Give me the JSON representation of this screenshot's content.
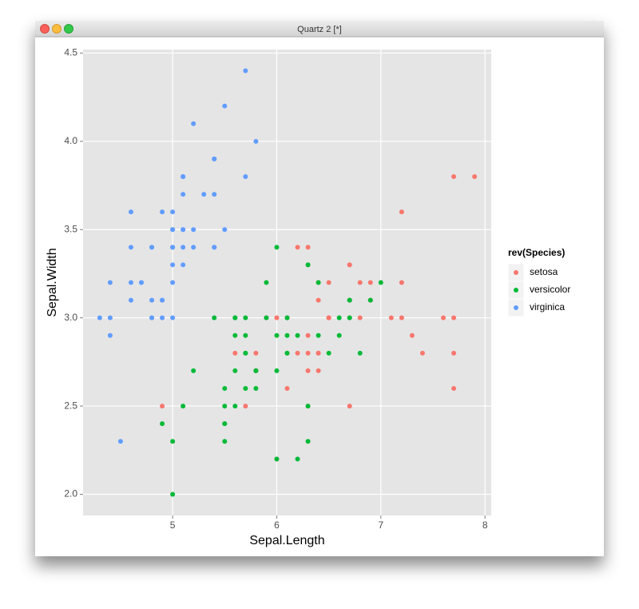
{
  "window_title": "Quartz 2 [*]",
  "chart_data": {
    "type": "scatter",
    "x_label": "Sepal.Length",
    "y_label": "Sepal.Width",
    "legend_title": "rev(Species)",
    "legend_position": "right",
    "grid": true,
    "panel_color": "#e5e5e5",
    "xlim": [
      4.14,
      8.06
    ],
    "ylim": [
      1.88,
      4.52
    ],
    "xticks": [
      5,
      6,
      7,
      8
    ],
    "yticks": [
      {
        "value": 2,
        "label": "2.0"
      },
      2.5,
      {
        "value": 3,
        "label": "3.0"
      },
      3.5,
      {
        "value": 4,
        "label": "4.0"
      },
      4.5
    ],
    "series": [
      {
        "name": "setosa",
        "color": "#f8766d",
        "x": [
          6.3,
          5.8,
          7.1,
          6.3,
          6.5,
          7.6,
          4.9,
          7.3,
          6.7,
          7.2,
          6.5,
          6.4,
          6.8,
          5.7,
          5.8,
          6.4,
          6.5,
          7.7,
          7.7,
          6.0,
          6.9,
          5.6,
          7.7,
          6.3,
          6.7,
          7.2,
          6.2,
          6.1,
          6.4,
          7.2,
          7.4,
          7.9,
          6.4,
          6.3,
          6.1,
          7.7,
          6.3,
          6.4,
          6.0,
          6.9,
          6.7,
          6.9,
          5.8,
          6.8,
          6.7,
          6.7,
          6.3,
          6.5,
          6.2,
          5.9
        ],
        "y": [
          3.3,
          2.7,
          3.0,
          2.9,
          3.0,
          3.0,
          2.5,
          2.9,
          2.5,
          3.6,
          3.2,
          2.7,
          3.0,
          2.5,
          2.8,
          3.2,
          3.0,
          3.8,
          2.6,
          2.2,
          3.2,
          2.8,
          2.8,
          2.7,
          3.3,
          3.2,
          2.8,
          3.0,
          2.8,
          3.0,
          2.8,
          3.8,
          2.8,
          2.8,
          2.6,
          3.0,
          3.4,
          3.1,
          3.0,
          3.1,
          3.1,
          3.1,
          2.7,
          3.2,
          3.3,
          3.0,
          2.5,
          3.0,
          3.4,
          3.0
        ]
      },
      {
        "name": "versicolor",
        "color": "#00ba38",
        "x": [
          7.0,
          6.4,
          6.9,
          5.5,
          6.5,
          5.7,
          6.3,
          4.9,
          6.6,
          5.2,
          5.0,
          5.9,
          6.0,
          6.1,
          5.6,
          6.7,
          5.6,
          5.8,
          6.2,
          5.6,
          5.9,
          6.1,
          6.3,
          6.1,
          6.4,
          6.6,
          6.8,
          6.7,
          6.0,
          5.7,
          5.5,
          5.5,
          5.8,
          6.0,
          5.4,
          6.0,
          6.7,
          6.3,
          5.6,
          5.5,
          5.5,
          6.1,
          5.8,
          5.0,
          5.6,
          5.7,
          5.7,
          6.2,
          5.1,
          5.7
        ],
        "y": [
          3.2,
          3.2,
          3.1,
          2.3,
          2.8,
          2.8,
          3.3,
          2.4,
          2.9,
          2.7,
          2.0,
          3.0,
          2.2,
          2.9,
          2.9,
          3.1,
          3.0,
          2.7,
          2.2,
          2.5,
          3.2,
          2.8,
          2.5,
          2.8,
          2.9,
          3.0,
          2.8,
          3.0,
          2.9,
          2.6,
          2.4,
          2.4,
          2.7,
          2.7,
          3.0,
          3.4,
          3.1,
          2.3,
          3.0,
          2.5,
          2.6,
          3.0,
          2.6,
          2.3,
          2.7,
          3.0,
          2.9,
          2.9,
          2.5,
          2.8
        ]
      },
      {
        "name": "virginica",
        "color": "#619cff",
        "x": [
          5.1,
          4.9,
          4.7,
          4.6,
          5.0,
          5.4,
          4.6,
          5.0,
          4.4,
          4.9,
          5.4,
          4.8,
          4.8,
          4.3,
          5.8,
          5.7,
          5.4,
          5.1,
          5.7,
          5.1,
          5.4,
          5.1,
          4.6,
          5.1,
          4.8,
          5.0,
          5.0,
          5.2,
          5.2,
          4.7,
          4.8,
          5.4,
          5.2,
          5.5,
          4.9,
          5.0,
          5.5,
          4.9,
          4.4,
          5.1,
          5.0,
          4.5,
          4.4,
          5.0,
          5.1,
          4.8,
          5.1,
          4.6,
          5.3,
          5.0
        ],
        "y": [
          3.5,
          3.0,
          3.2,
          3.1,
          3.6,
          3.9,
          3.4,
          3.4,
          2.9,
          3.1,
          3.7,
          3.4,
          3.0,
          3.0,
          4.0,
          4.4,
          3.9,
          3.5,
          3.8,
          3.8,
          3.4,
          3.7,
          3.6,
          3.3,
          3.4,
          3.0,
          3.4,
          3.5,
          3.4,
          3.2,
          3.1,
          3.4,
          4.1,
          4.2,
          3.1,
          3.2,
          3.5,
          3.6,
          3.0,
          3.4,
          3.5,
          2.3,
          3.2,
          3.5,
          3.8,
          3.0,
          3.8,
          3.2,
          3.7,
          3.3
        ]
      }
    ]
  }
}
